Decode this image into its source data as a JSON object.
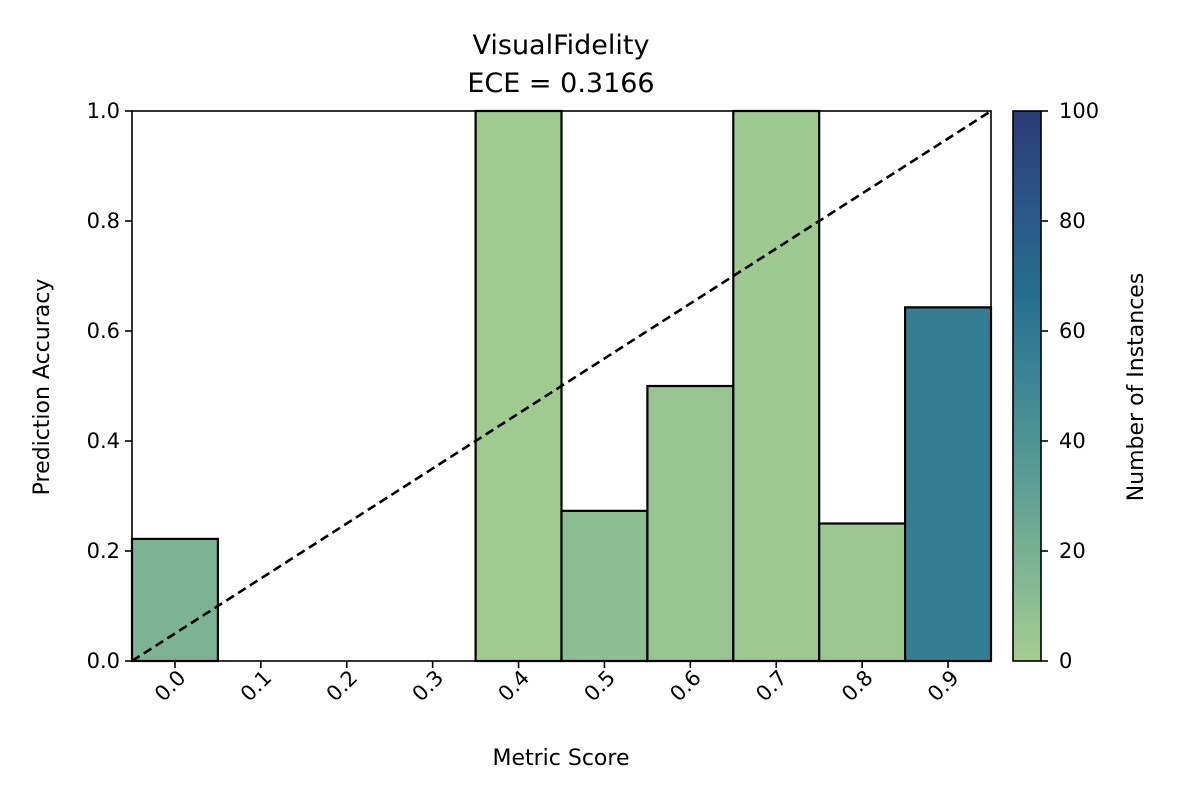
{
  "chart_data": {
    "type": "bar",
    "title": "VisualFidelity",
    "subtitle": "ECE = 0.3166",
    "xlabel": "Metric Score",
    "ylabel": "Prediction Accuracy",
    "categories": [
      "0.0",
      "0.1",
      "0.2",
      "0.3",
      "0.4",
      "0.5",
      "0.6",
      "0.7",
      "0.8",
      "0.9"
    ],
    "x": [
      0.0,
      0.1,
      0.2,
      0.3,
      0.4,
      0.5,
      0.6,
      0.7,
      0.8,
      0.9
    ],
    "values": [
      0.222,
      0.0,
      0.0,
      0.0,
      1.0,
      0.273,
      0.5,
      1.0,
      0.25,
      0.643
    ],
    "counts": [
      18,
      0,
      0,
      0,
      2,
      11,
      6,
      3,
      4,
      56
    ],
    "bin_width": 0.1,
    "xlim": [
      -0.05,
      0.95
    ],
    "ylim": [
      0,
      1.0
    ],
    "yticks": [
      "0.0",
      "0.2",
      "0.4",
      "0.6",
      "0.8",
      "1.0"
    ],
    "reference_line": "diagonal dashed line (perfect calibration)",
    "grid": false,
    "colorbar": {
      "label": "Number of Instances",
      "range": [
        0,
        100
      ],
      "ticks": [
        "0",
        "20",
        "40",
        "60",
        "80",
        "100"
      ],
      "colormap": "crest",
      "colors": [
        "#a5cd90",
        "#7fb594",
        "#5a9d94",
        "#3e8694",
        "#266e8f",
        "#2a5487",
        "#2c3b75"
      ]
    },
    "bar_edge_color": "#000000",
    "reference_line_color": "#000000"
  }
}
